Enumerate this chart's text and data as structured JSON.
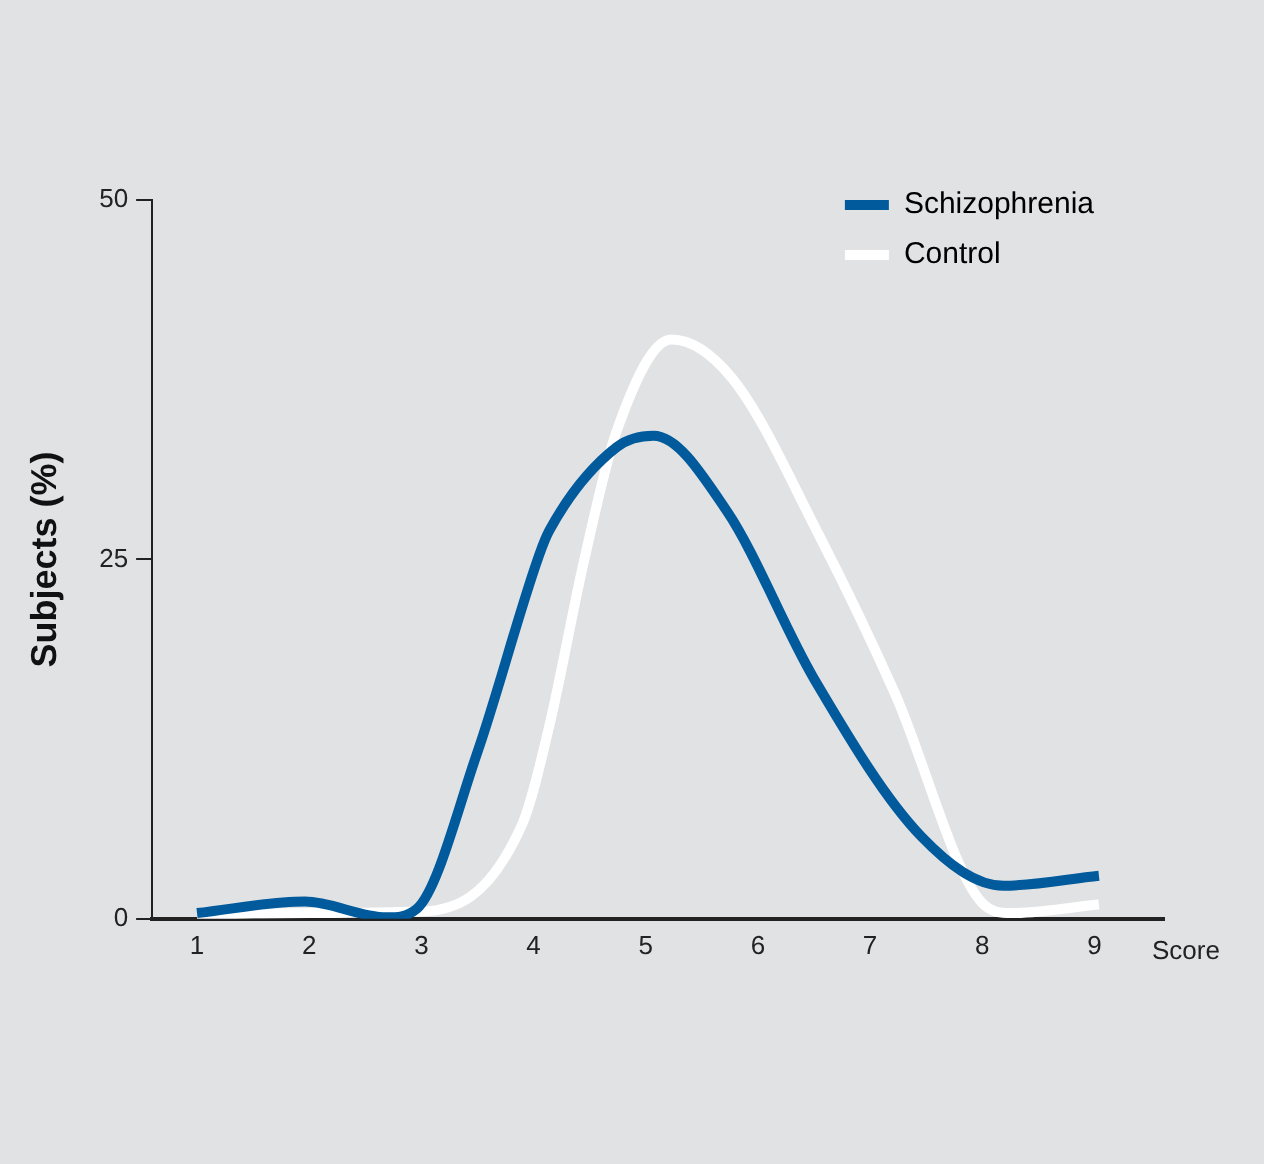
{
  "chart_data": {
    "type": "line",
    "ylabel": "Subjects (%)",
    "xlabel": "Score",
    "xlim": [
      0.6,
      9.62
    ],
    "ylim": [
      0,
      50
    ],
    "xticks": [
      1,
      2,
      3,
      4,
      5,
      6,
      7,
      8,
      9
    ],
    "yticks": [
      0,
      25,
      50
    ],
    "grid": false,
    "legend": "top right",
    "marker": "none",
    "line_style": "solid",
    "series": [
      {
        "name": "Schizophrenia",
        "color": "#005a9c",
        "x": [
          1,
          1.96,
          2.69,
          2.96,
          3.5,
          4.05,
          4.14,
          4.74,
          5.07,
          5.72,
          6.5,
          7.46,
          8.19,
          9.04
        ],
        "values": [
          0.4,
          1.2,
          0.1,
          0.7,
          11.6,
          25.3,
          27,
          32.8,
          33.6,
          28.4,
          16.7,
          5.7,
          2.3,
          3.0
        ]
      },
      {
        "name": "Control",
        "color": "#ffffff",
        "x": [
          1,
          2,
          3,
          3.9,
          4.14,
          4.45,
          4.74,
          5.23,
          5.77,
          6.55,
          7.22,
          8.0,
          8.26,
          9.04
        ],
        "values": [
          0.3,
          0.4,
          0.5,
          6.6,
          13.4,
          24.9,
          33.9,
          40.3,
          37.6,
          26.6,
          15.7,
          1.1,
          0.4,
          1.0
        ]
      }
    ]
  }
}
